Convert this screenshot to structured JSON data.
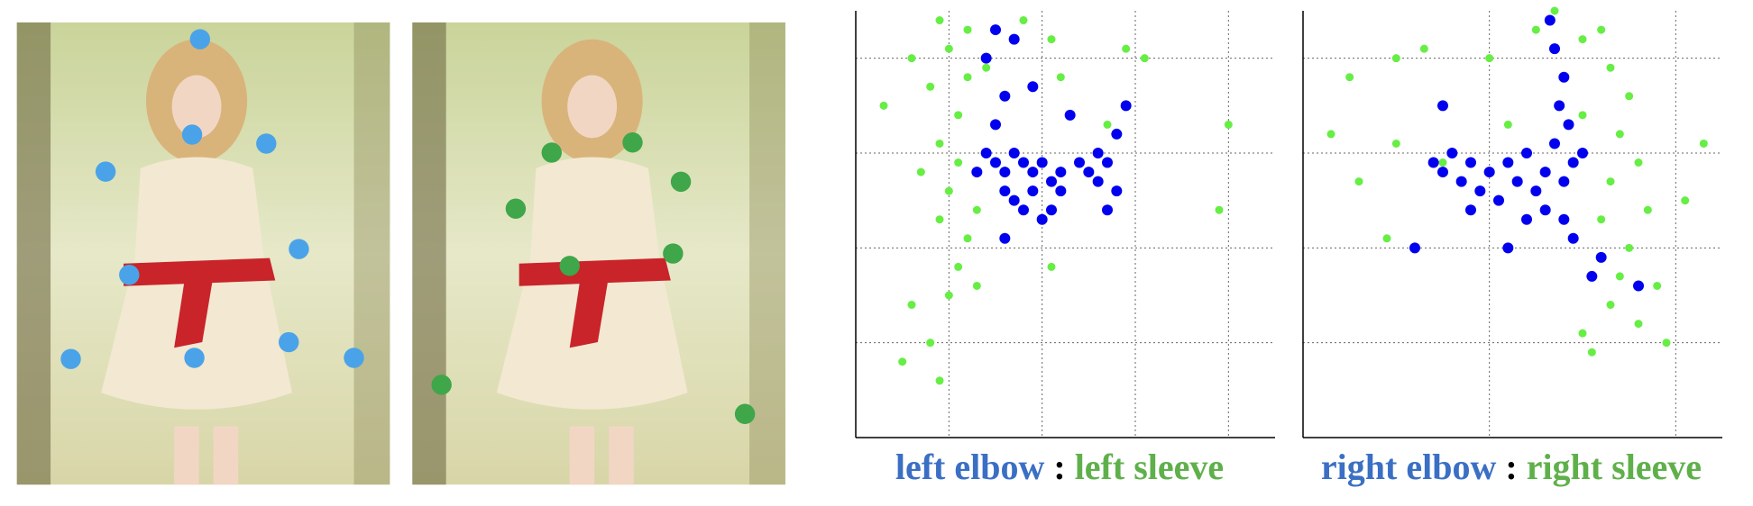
{
  "chart_data": [
    {
      "type": "scatter",
      "separator": ":",
      "xlim": [
        0,
        4.5
      ],
      "ylim": [
        0,
        4.5
      ],
      "xticks": [
        1,
        2,
        3,
        4
      ],
      "yticks": [
        1,
        2,
        3,
        4
      ],
      "grid": true,
      "series": [
        {
          "name": "left elbow",
          "color": "#0000ee",
          "x": [
            1.4,
            1.5,
            1.6,
            1.7,
            1.8,
            1.9,
            2.0,
            2.1,
            2.2,
            1.6,
            1.7,
            1.8,
            1.9,
            2.0,
            2.2,
            2.4,
            2.5,
            2.6,
            2.7,
            2.8,
            2.6,
            2.8,
            2.9,
            1.5,
            1.6,
            1.4,
            1.7,
            1.9,
            2.3,
            1.6,
            2.1,
            2.7,
            1.3,
            1.5
          ],
          "values": [
            3.0,
            2.9,
            2.8,
            3.0,
            2.9,
            2.8,
            2.9,
            2.7,
            2.8,
            2.6,
            2.5,
            2.4,
            2.6,
            2.3,
            2.6,
            2.9,
            2.8,
            2.7,
            2.9,
            2.6,
            3.0,
            3.2,
            3.5,
            3.3,
            3.6,
            4.0,
            4.2,
            3.7,
            3.4,
            2.1,
            2.4,
            2.4,
            2.8,
            4.3
          ]
        },
        {
          "name": "left sleeve",
          "color": "#66ee44",
          "x": [
            0.6,
            0.3,
            0.9,
            1.0,
            1.2,
            0.8,
            1.1,
            0.9,
            1.1,
            1.0,
            0.9,
            1.2,
            1.1,
            1.0,
            0.8,
            0.5,
            1.2,
            1.4,
            1.8,
            2.1,
            2.9,
            3.1,
            2.2,
            2.7,
            1.3,
            0.7,
            4.0,
            3.9,
            2.1,
            0.6,
            0.9,
            1.3
          ],
          "values": [
            4.0,
            3.5,
            4.4,
            4.1,
            4.3,
            3.7,
            3.4,
            3.1,
            2.9,
            2.6,
            2.3,
            2.1,
            1.8,
            1.5,
            1.0,
            0.8,
            3.8,
            3.9,
            4.4,
            4.2,
            4.1,
            4.0,
            3.8,
            3.3,
            2.4,
            2.8,
            3.3,
            2.4,
            1.8,
            1.4,
            0.6,
            1.6
          ]
        }
      ]
    },
    {
      "type": "scatter",
      "separator": ":",
      "xlim": [
        0,
        4.5
      ],
      "ylim": [
        0,
        4.5
      ],
      "xticks": [
        2,
        4
      ],
      "yticks": [
        1,
        2,
        3,
        4
      ],
      "grid": true,
      "series": [
        {
          "name": "right elbow",
          "color": "#0000ee",
          "x": [
            1.4,
            1.5,
            1.6,
            1.7,
            1.8,
            1.9,
            2.0,
            2.1,
            2.2,
            2.3,
            2.4,
            2.5,
            2.6,
            2.7,
            2.8,
            2.9,
            3.0,
            2.6,
            2.8,
            2.9,
            2.4,
            1.8,
            1.2,
            2.2,
            2.75,
            2.8,
            2.7,
            2.65,
            2.85,
            1.5,
            3.1,
            3.6,
            3.2
          ],
          "values": [
            2.9,
            2.8,
            3.0,
            2.7,
            2.9,
            2.6,
            2.8,
            2.5,
            2.9,
            2.7,
            3.0,
            2.6,
            2.8,
            3.1,
            2.7,
            2.9,
            3.0,
            2.4,
            2.3,
            2.1,
            2.3,
            2.4,
            2.0,
            2.0,
            3.5,
            3.8,
            4.1,
            4.4,
            3.3,
            3.5,
            1.7,
            1.6,
            1.9
          ]
        },
        {
          "name": "right sleeve",
          "color": "#66ee44",
          "x": [
            0.5,
            1.0,
            1.3,
            0.3,
            0.6,
            1.0,
            0.9,
            2.5,
            2.7,
            3.0,
            3.2,
            3.3,
            3.5,
            3.4,
            3.6,
            3.3,
            3.2,
            3.5,
            3.4,
            3.3,
            3.6,
            3.0,
            3.9,
            3.8,
            4.1,
            4.3,
            3.7,
            2.2,
            1.5,
            2.0,
            3.0,
            3.1
          ],
          "values": [
            3.8,
            4.0,
            4.1,
            3.2,
            2.7,
            3.1,
            2.1,
            4.3,
            4.5,
            4.2,
            4.3,
            3.9,
            3.6,
            3.2,
            2.9,
            2.7,
            2.3,
            2.0,
            1.7,
            1.4,
            1.2,
            1.1,
            1.0,
            1.6,
            2.5,
            3.1,
            2.4,
            3.3,
            2.9,
            4.0,
            3.4,
            0.9
          ]
        }
      ]
    }
  ]
}
